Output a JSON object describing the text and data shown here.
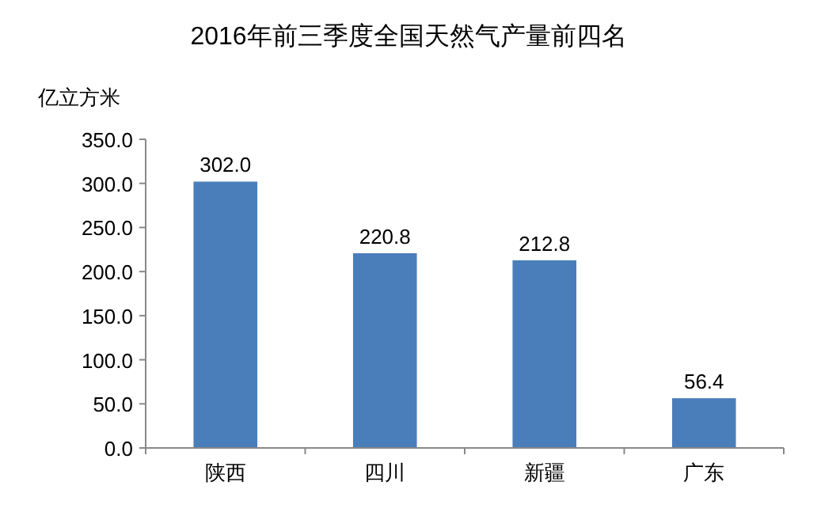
{
  "chart_data": {
    "type": "bar",
    "title": "2016年前三季度全国天然气产量前四名",
    "ylabel": "亿立方米",
    "categories": [
      "陕西",
      "四川",
      "新疆",
      "广东"
    ],
    "values": [
      302.0,
      220.8,
      212.8,
      56.4
    ],
    "value_labels": [
      "302.0",
      "220.8",
      "212.8",
      "56.4"
    ],
    "color": "#4a7ebb",
    "ylim": [
      0,
      350
    ],
    "yticks": [
      {
        "value": 0,
        "label": "0.0"
      },
      {
        "value": 50,
        "label": "50.0"
      },
      {
        "value": 100,
        "label": "100.0"
      },
      {
        "value": 150,
        "label": "150.0"
      },
      {
        "value": 200,
        "label": "200.0"
      },
      {
        "value": 250,
        "label": "250.0"
      },
      {
        "value": 300,
        "label": "300.0"
      },
      {
        "value": 350,
        "label": "350.0"
      }
    ],
    "grid": false
  }
}
